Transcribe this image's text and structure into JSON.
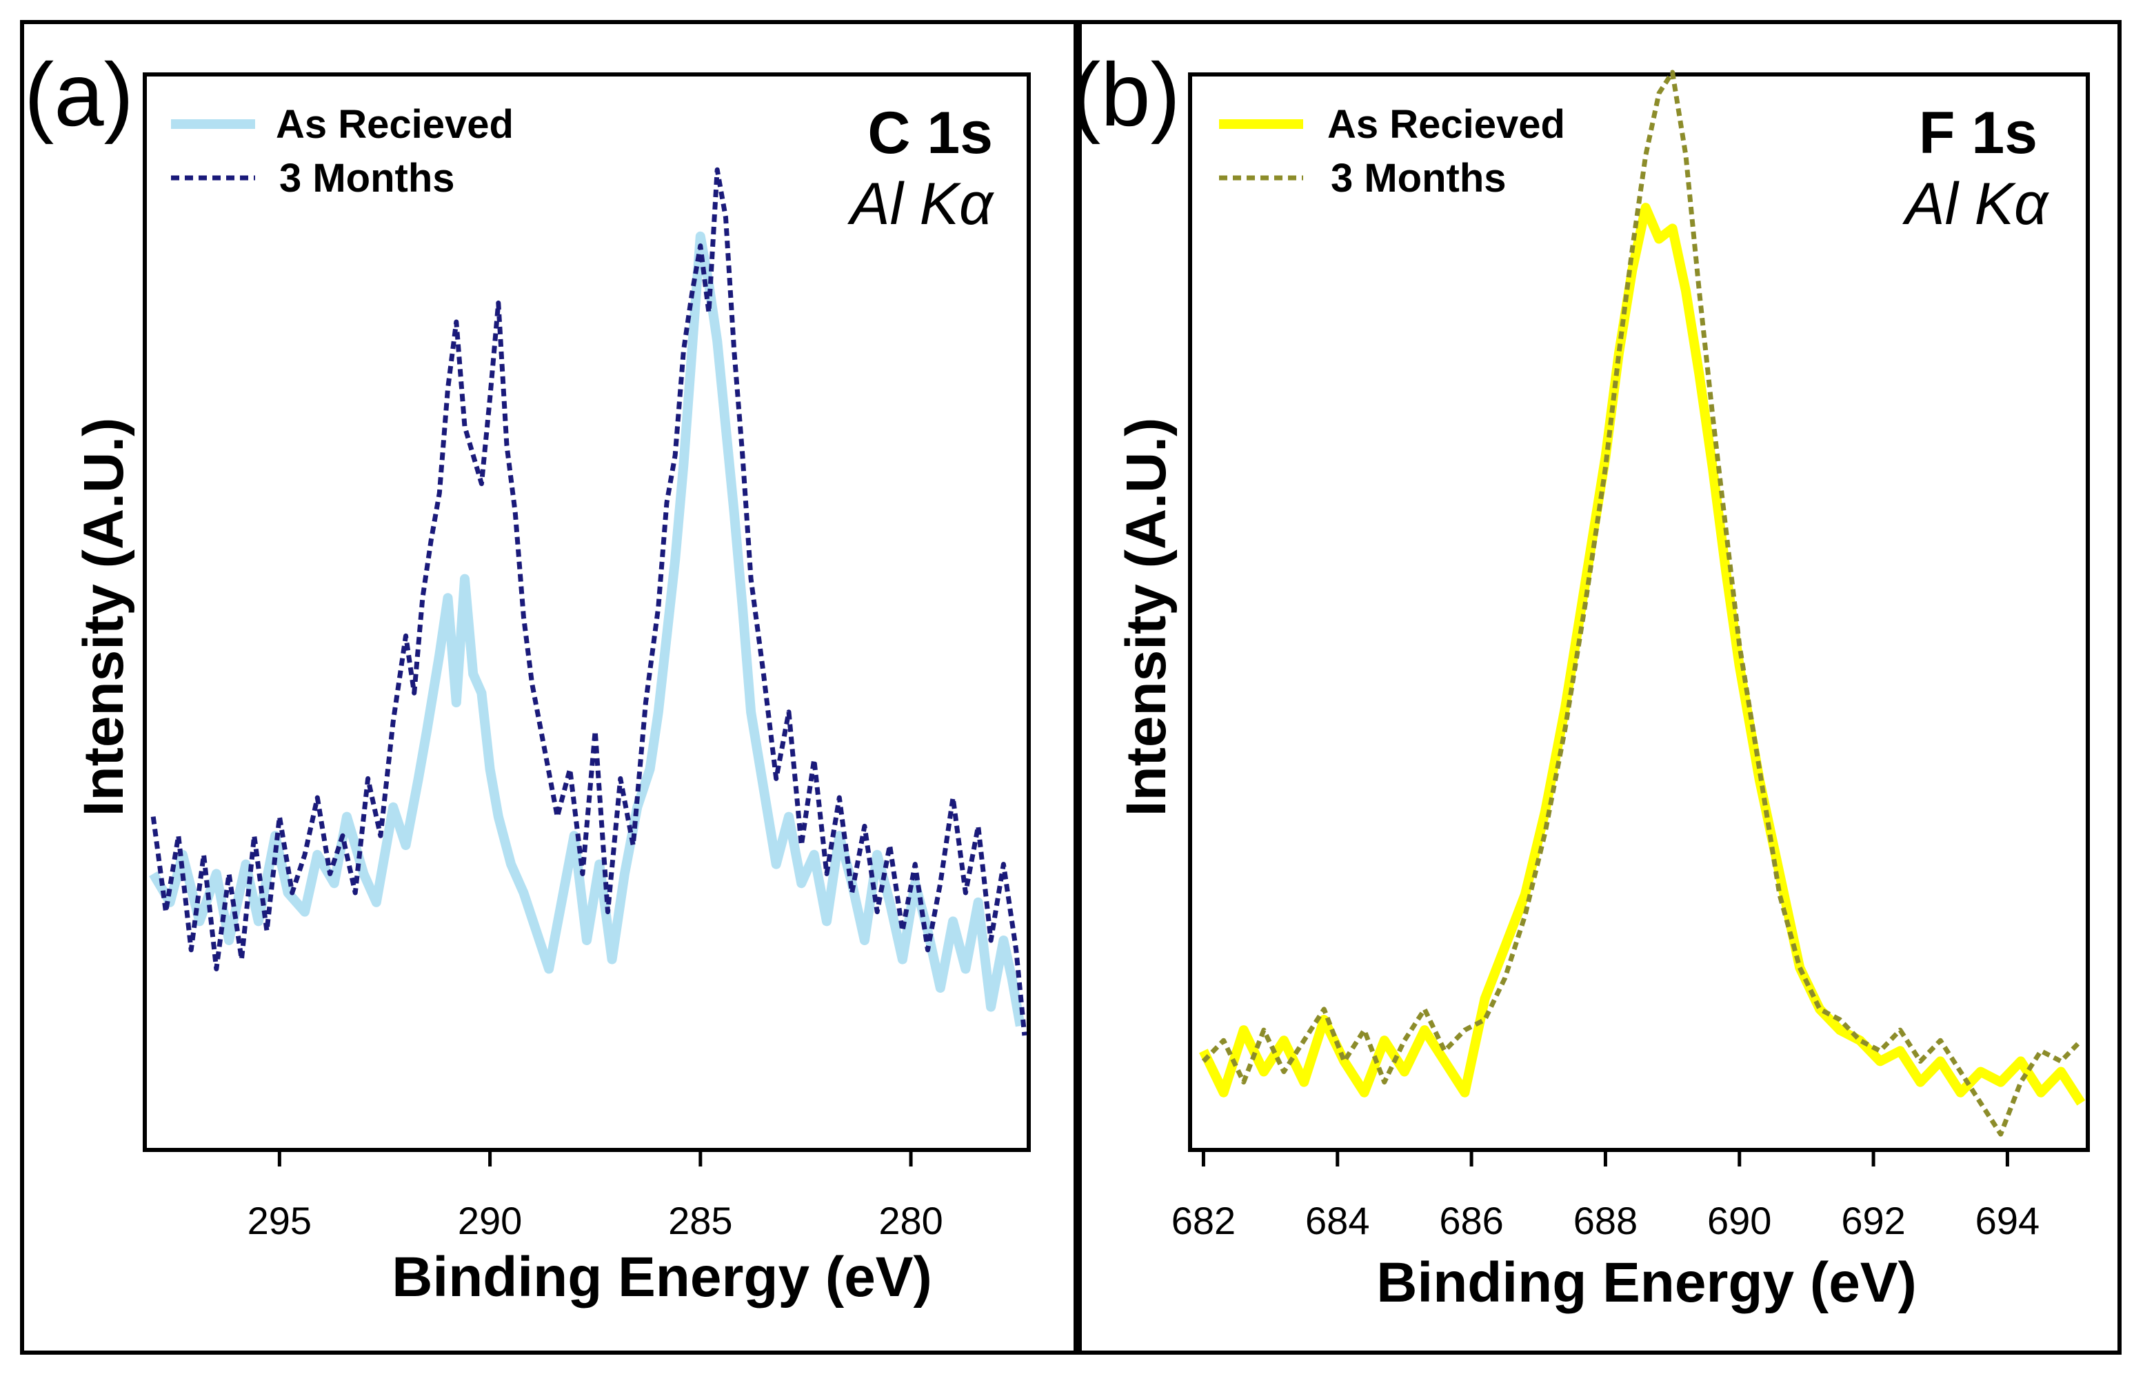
{
  "chart_data": [
    {
      "type": "line",
      "panel_label": "(a)",
      "element_label": "C 1s",
      "source_label": "Al Kα",
      "xlabel": "Binding Energy (eV)",
      "ylabel": "Intensity (A.U.)",
      "xlim": [
        298.2,
        277.2
      ],
      "ylim": [
        0,
        100
      ],
      "x_ticks": [
        "295",
        "290",
        "285",
        "280"
      ],
      "x_tick_values": [
        295,
        290,
        285,
        280
      ],
      "series": [
        {
          "name": "As Recieved",
          "color": "#b3e0f2",
          "style": "solid",
          "points": [
            [
              298.0,
              27
            ],
            [
              297.6,
              24
            ],
            [
              297.3,
              29
            ],
            [
              296.9,
              22
            ],
            [
              296.5,
              27
            ],
            [
              296.2,
              20
            ],
            [
              295.8,
              28
            ],
            [
              295.5,
              22
            ],
            [
              295.1,
              31
            ],
            [
              294.8,
              25
            ],
            [
              294.4,
              23
            ],
            [
              294.1,
              29
            ],
            [
              293.7,
              26
            ],
            [
              293.4,
              33
            ],
            [
              293.0,
              27
            ],
            [
              292.7,
              24
            ],
            [
              292.3,
              34
            ],
            [
              292.0,
              30
            ],
            [
              291.7,
              37
            ],
            [
              291.5,
              42
            ],
            [
              291.2,
              50
            ],
            [
              291.0,
              56
            ],
            [
              290.8,
              45
            ],
            [
              290.6,
              58
            ],
            [
              290.4,
              48
            ],
            [
              290.2,
              46
            ],
            [
              290.0,
              38
            ],
            [
              289.8,
              33
            ],
            [
              289.5,
              28
            ],
            [
              289.2,
              25
            ],
            [
              288.9,
              21
            ],
            [
              288.6,
              17
            ],
            [
              288.3,
              24
            ],
            [
              288.0,
              31
            ],
            [
              287.7,
              20
            ],
            [
              287.4,
              28
            ],
            [
              287.1,
              18
            ],
            [
              286.8,
              27
            ],
            [
              286.5,
              34
            ],
            [
              286.2,
              38
            ],
            [
              286.0,
              44
            ],
            [
              285.8,
              52
            ],
            [
              285.6,
              60
            ],
            [
              285.4,
              70
            ],
            [
              285.2,
              82
            ],
            [
              285.0,
              94
            ],
            [
              284.8,
              89
            ],
            [
              284.6,
              83
            ],
            [
              284.4,
              74
            ],
            [
              284.2,
              65
            ],
            [
              284.0,
              55
            ],
            [
              283.8,
              44
            ],
            [
              283.5,
              36
            ],
            [
              283.2,
              28
            ],
            [
              282.9,
              33
            ],
            [
              282.6,
              26
            ],
            [
              282.3,
              29
            ],
            [
              282.0,
              22
            ],
            [
              281.7,
              31
            ],
            [
              281.4,
              26
            ],
            [
              281.1,
              20
            ],
            [
              280.8,
              29
            ],
            [
              280.5,
              24
            ],
            [
              280.2,
              18
            ],
            [
              279.9,
              26
            ],
            [
              279.6,
              21
            ],
            [
              279.3,
              15
            ],
            [
              279.0,
              22
            ],
            [
              278.7,
              17
            ],
            [
              278.4,
              24
            ],
            [
              278.1,
              13
            ],
            [
              277.8,
              20
            ],
            [
              277.6,
              16
            ],
            [
              277.4,
              11
            ]
          ]
        },
        {
          "name": "3 Months",
          "color": "#1a1a7a",
          "style": "dashed",
          "points": [
            [
              298.0,
              33
            ],
            [
              297.7,
              23
            ],
            [
              297.4,
              31
            ],
            [
              297.1,
              19
            ],
            [
              296.8,
              29
            ],
            [
              296.5,
              17
            ],
            [
              296.2,
              27
            ],
            [
              295.9,
              18
            ],
            [
              295.6,
              31
            ],
            [
              295.3,
              21
            ],
            [
              295.0,
              33
            ],
            [
              294.7,
              25
            ],
            [
              294.4,
              29
            ],
            [
              294.1,
              35
            ],
            [
              293.8,
              27
            ],
            [
              293.5,
              31
            ],
            [
              293.2,
              25
            ],
            [
              292.9,
              37
            ],
            [
              292.6,
              31
            ],
            [
              292.3,
              43
            ],
            [
              292.0,
              52
            ],
            [
              291.8,
              46
            ],
            [
              291.6,
              56
            ],
            [
              291.4,
              62
            ],
            [
              291.2,
              67
            ],
            [
              291.0,
              78
            ],
            [
              290.8,
              85
            ],
            [
              290.6,
              74
            ],
            [
              290.4,
              71
            ],
            [
              290.2,
              68
            ],
            [
              290.0,
              77
            ],
            [
              289.8,
              87
            ],
            [
              289.6,
              72
            ],
            [
              289.4,
              65
            ],
            [
              289.2,
              54
            ],
            [
              289.0,
              47
            ],
            [
              288.7,
              40
            ],
            [
              288.4,
              33
            ],
            [
              288.1,
              38
            ],
            [
              287.8,
              27
            ],
            [
              287.5,
              42
            ],
            [
              287.2,
              23
            ],
            [
              286.9,
              37
            ],
            [
              286.6,
              30
            ],
            [
              286.3,
              45
            ],
            [
              286.0,
              55
            ],
            [
              285.8,
              66
            ],
            [
              285.6,
              71
            ],
            [
              285.4,
              82
            ],
            [
              285.2,
              88
            ],
            [
              285.0,
              93
            ],
            [
              284.8,
              86
            ],
            [
              284.6,
              101
            ],
            [
              284.4,
              96
            ],
            [
              284.2,
              82
            ],
            [
              284.0,
              71
            ],
            [
              283.8,
              58
            ],
            [
              283.5,
              48
            ],
            [
              283.2,
              37
            ],
            [
              282.9,
              44
            ],
            [
              282.6,
              30
            ],
            [
              282.3,
              39
            ],
            [
              282.0,
              27
            ],
            [
              281.7,
              35
            ],
            [
              281.4,
              25
            ],
            [
              281.1,
              32
            ],
            [
              280.8,
              23
            ],
            [
              280.5,
              30
            ],
            [
              280.2,
              21
            ],
            [
              279.9,
              28
            ],
            [
              279.6,
              19
            ],
            [
              279.3,
              26
            ],
            [
              279.0,
              35
            ],
            [
              278.7,
              25
            ],
            [
              278.4,
              32
            ],
            [
              278.1,
              20
            ],
            [
              277.8,
              28
            ],
            [
              277.5,
              19
            ],
            [
              277.3,
              10
            ]
          ]
        }
      ],
      "legend_position": "top-left"
    },
    {
      "type": "line",
      "panel_label": "(b)",
      "element_label": "F 1s",
      "source_label": "Al Kα",
      "xlabel": "Binding Energy (eV)",
      "ylabel": "Intensity (A.U.)",
      "xlim": [
        681.8,
        695.2
      ],
      "ylim": [
        0,
        100
      ],
      "x_ticks": [
        "682",
        "684",
        "686",
        "688",
        "690",
        "692",
        "694"
      ],
      "x_tick_values": [
        682,
        684,
        686,
        688,
        690,
        692,
        694
      ],
      "series": [
        {
          "name": "As Recieved",
          "color": "#ffff00",
          "style": "solid",
          "points": [
            [
              682.0,
              7
            ],
            [
              682.3,
              3
            ],
            [
              682.6,
              9
            ],
            [
              682.9,
              5
            ],
            [
              683.2,
              8
            ],
            [
              683.5,
              4
            ],
            [
              683.8,
              10
            ],
            [
              684.1,
              6
            ],
            [
              684.4,
              3
            ],
            [
              684.7,
              8
            ],
            [
              685.0,
              5
            ],
            [
              685.3,
              9
            ],
            [
              685.6,
              6
            ],
            [
              685.9,
              3
            ],
            [
              686.2,
              12
            ],
            [
              686.5,
              17
            ],
            [
              686.8,
              22
            ],
            [
              687.1,
              30
            ],
            [
              687.4,
              40
            ],
            [
              687.7,
              52
            ],
            [
              688.0,
              64
            ],
            [
              688.2,
              74
            ],
            [
              688.4,
              82
            ],
            [
              688.6,
              88
            ],
            [
              688.8,
              85
            ],
            [
              689.0,
              86
            ],
            [
              689.2,
              80
            ],
            [
              689.4,
              72
            ],
            [
              689.6,
              63
            ],
            [
              689.8,
              53
            ],
            [
              690.0,
              44
            ],
            [
              690.3,
              33
            ],
            [
              690.6,
              24
            ],
            [
              690.9,
              15
            ],
            [
              691.2,
              11
            ],
            [
              691.5,
              9
            ],
            [
              691.8,
              8
            ],
            [
              692.1,
              6
            ],
            [
              692.4,
              7
            ],
            [
              692.7,
              4
            ],
            [
              693.0,
              6
            ],
            [
              693.3,
              3
            ],
            [
              693.6,
              5
            ],
            [
              693.9,
              4
            ],
            [
              694.2,
              6
            ],
            [
              694.5,
              3
            ],
            [
              694.8,
              5
            ],
            [
              695.1,
              2
            ]
          ]
        },
        {
          "name": "3 Months",
          "color": "#8c8c2a",
          "style": "dashed",
          "points": [
            [
              682.0,
              6
            ],
            [
              682.3,
              8
            ],
            [
              682.6,
              4
            ],
            [
              682.9,
              9
            ],
            [
              683.2,
              5
            ],
            [
              683.5,
              8
            ],
            [
              683.8,
              11
            ],
            [
              684.1,
              6
            ],
            [
              684.4,
              9
            ],
            [
              684.7,
              4
            ],
            [
              685.0,
              8
            ],
            [
              685.3,
              11
            ],
            [
              685.6,
              7
            ],
            [
              685.9,
              9
            ],
            [
              686.2,
              10
            ],
            [
              686.5,
              14
            ],
            [
              686.8,
              20
            ],
            [
              687.1,
              28
            ],
            [
              687.4,
              38
            ],
            [
              687.7,
              50
            ],
            [
              688.0,
              63
            ],
            [
              688.2,
              74
            ],
            [
              688.4,
              84
            ],
            [
              688.6,
              93
            ],
            [
              688.8,
              99
            ],
            [
              689.0,
              101
            ],
            [
              689.2,
              93
            ],
            [
              689.4,
              80
            ],
            [
              689.6,
              68
            ],
            [
              689.8,
              57
            ],
            [
              690.0,
              46
            ],
            [
              690.3,
              34
            ],
            [
              690.6,
              22
            ],
            [
              690.9,
              15
            ],
            [
              691.2,
              11
            ],
            [
              691.5,
              10
            ],
            [
              691.8,
              8
            ],
            [
              692.1,
              7
            ],
            [
              692.4,
              9
            ],
            [
              692.7,
              6
            ],
            [
              693.0,
              8
            ],
            [
              693.3,
              5
            ],
            [
              693.6,
              2
            ],
            [
              693.9,
              -1
            ],
            [
              694.2,
              4
            ],
            [
              694.5,
              7
            ],
            [
              694.8,
              6
            ],
            [
              695.1,
              8
            ]
          ]
        }
      ],
      "legend_position": "top-left"
    }
  ]
}
